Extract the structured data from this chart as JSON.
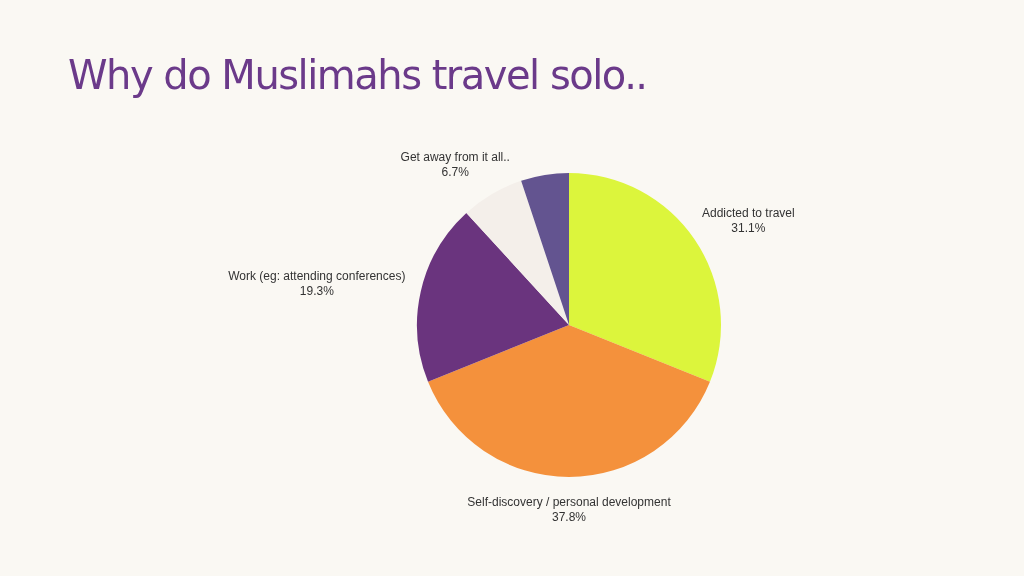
{
  "chart_data": {
    "type": "pie",
    "title": "Why do Muslimahs travel solo..",
    "categories": [
      "Addicted to travel",
      "Self-discovery / personal development",
      "Work (eg: attending conferences)",
      "Get away from it all..",
      null
    ],
    "values": [
      31.1,
      37.8,
      19.3,
      6.7,
      5.1
    ],
    "value_labels": [
      "31.1%",
      "37.8%",
      "19.3%",
      "6.7%",
      null
    ],
    "colors": [
      "#dcf53c",
      "#f4913c",
      "#6a347e",
      "#f4efea",
      "#635490"
    ],
    "legend": false
  }
}
